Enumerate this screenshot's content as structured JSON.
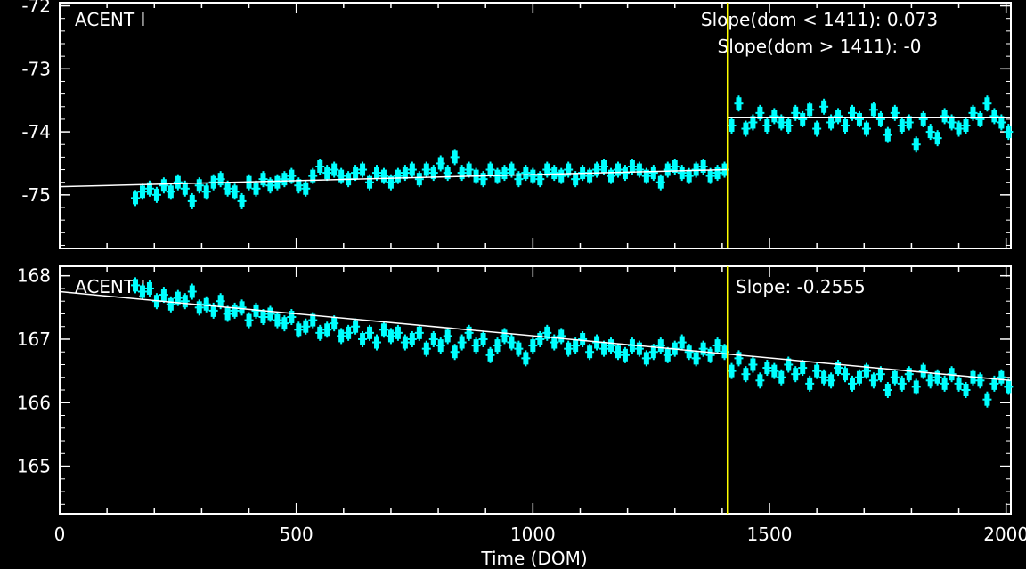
{
  "colors": {
    "background": "#000000",
    "axes": "#ffffff",
    "points": "#00ffff",
    "fit": "#ffffff",
    "divider": "#ffff00"
  },
  "xlabel": "Time (DOM)",
  "chart_data": [
    {
      "type": "scatter",
      "panel_label": "ACENT I",
      "annotations": [
        "Slope(dom < 1411): 0.073",
        "Slope(dom > 1411): -0"
      ],
      "x_ticks": [
        "0",
        "500",
        "1000",
        "1500",
        "2000"
      ],
      "y_ticks": [
        "-72",
        "-73",
        "-74",
        "-75"
      ],
      "xlim": [
        0,
        2010
      ],
      "ylim": [
        -75.85,
        -71.95
      ],
      "divider_x": 1411,
      "fit_segments": [
        {
          "x": [
            0,
            1411
          ],
          "y": [
            -74.87,
            -74.6
          ]
        },
        {
          "x": [
            1411,
            2010
          ],
          "y": [
            -73.77,
            -73.77
          ]
        }
      ],
      "series": [
        {
          "x": [
            160,
            175,
            190,
            205,
            220,
            235,
            250,
            265,
            280,
            295,
            310,
            325,
            340,
            355,
            370,
            385,
            400,
            415,
            430,
            445,
            460,
            475,
            490,
            505,
            520,
            535,
            550,
            565,
            580,
            595,
            610,
            625,
            640,
            655,
            670,
            685,
            700,
            715,
            730,
            745,
            760,
            775,
            790,
            805,
            820,
            835,
            850,
            865,
            880,
            895,
            910,
            925,
            940,
            955,
            970,
            985,
            1000,
            1015,
            1030,
            1045,
            1060,
            1075,
            1090,
            1105,
            1120,
            1135,
            1150,
            1165,
            1180,
            1195,
            1210,
            1225,
            1240,
            1255,
            1270,
            1285,
            1300,
            1315,
            1330,
            1345,
            1360,
            1375,
            1390,
            1405,
            1420,
            1435,
            1450,
            1465,
            1480,
            1495,
            1510,
            1525,
            1540,
            1555,
            1570,
            1585,
            1600,
            1615,
            1630,
            1645,
            1660,
            1675,
            1690,
            1705,
            1720,
            1735,
            1750,
            1765,
            1780,
            1795,
            1810,
            1825,
            1840,
            1855,
            1870,
            1885,
            1900,
            1915,
            1930,
            1945,
            1960,
            1975,
            1990,
            2005
          ],
          "y": [
            -75.05,
            -74.95,
            -74.9,
            -75.0,
            -74.85,
            -74.95,
            -74.8,
            -74.9,
            -75.1,
            -74.85,
            -74.95,
            -74.8,
            -74.75,
            -74.9,
            -74.95,
            -75.1,
            -74.8,
            -74.9,
            -74.75,
            -74.85,
            -74.8,
            -74.75,
            -74.7,
            -74.85,
            -74.9,
            -74.7,
            -74.55,
            -74.65,
            -74.6,
            -74.7,
            -74.75,
            -74.65,
            -74.6,
            -74.8,
            -74.65,
            -74.7,
            -74.8,
            -74.7,
            -74.65,
            -74.6,
            -74.75,
            -74.6,
            -74.65,
            -74.5,
            -74.65,
            -74.4,
            -74.65,
            -74.6,
            -74.7,
            -74.75,
            -74.6,
            -74.7,
            -74.65,
            -74.6,
            -74.75,
            -74.65,
            -74.7,
            -74.75,
            -74.6,
            -74.65,
            -74.7,
            -74.6,
            -74.75,
            -74.65,
            -74.7,
            -74.6,
            -74.55,
            -74.7,
            -74.6,
            -74.65,
            -74.55,
            -74.6,
            -74.7,
            -74.65,
            -74.8,
            -74.6,
            -74.55,
            -74.65,
            -74.7,
            -74.6,
            -74.55,
            -74.7,
            -74.65,
            -74.6,
            -73.9,
            -73.55,
            -73.95,
            -73.85,
            -73.7,
            -73.9,
            -73.75,
            -73.85,
            -73.9,
            -73.7,
            -73.8,
            -73.65,
            -73.95,
            -73.6,
            -73.85,
            -73.75,
            -73.9,
            -73.7,
            -73.8,
            -73.95,
            -73.65,
            -73.8,
            -74.05,
            -73.7,
            -73.9,
            -73.85,
            -74.2,
            -73.8,
            -74.0,
            -74.1,
            -73.75,
            -73.85,
            -73.95,
            -73.9,
            -73.7,
            -73.8,
            -73.55,
            -73.75,
            -73.85,
            -74.0
          ]
        }
      ]
    },
    {
      "type": "scatter",
      "panel_label": "ACENT J",
      "annotations": [
        "Slope: -0.2555"
      ],
      "x_ticks": [
        "0",
        "500",
        "1000",
        "1500",
        "2000"
      ],
      "y_ticks": [
        "168",
        "167",
        "166",
        "165"
      ],
      "xlim": [
        0,
        2010
      ],
      "ylim": [
        164.25,
        168.15
      ],
      "divider_x": 1411,
      "fit_segments": [
        {
          "x": [
            0,
            2010
          ],
          "y": [
            167.75,
            166.35
          ]
        }
      ],
      "series": [
        {
          "x": [
            160,
            175,
            190,
            205,
            220,
            235,
            250,
            265,
            280,
            295,
            310,
            325,
            340,
            355,
            370,
            385,
            400,
            415,
            430,
            445,
            460,
            475,
            490,
            505,
            520,
            535,
            550,
            565,
            580,
            595,
            610,
            625,
            640,
            655,
            670,
            685,
            700,
            715,
            730,
            745,
            760,
            775,
            790,
            805,
            820,
            835,
            850,
            865,
            880,
            895,
            910,
            925,
            940,
            955,
            970,
            985,
            1000,
            1015,
            1030,
            1045,
            1060,
            1075,
            1090,
            1105,
            1120,
            1135,
            1150,
            1165,
            1180,
            1195,
            1210,
            1225,
            1240,
            1255,
            1270,
            1285,
            1300,
            1315,
            1330,
            1345,
            1360,
            1375,
            1390,
            1405,
            1420,
            1435,
            1450,
            1465,
            1480,
            1495,
            1510,
            1525,
            1540,
            1555,
            1570,
            1585,
            1600,
            1615,
            1630,
            1645,
            1660,
            1675,
            1690,
            1705,
            1720,
            1735,
            1750,
            1765,
            1780,
            1795,
            1810,
            1825,
            1840,
            1855,
            1870,
            1885,
            1900,
            1915,
            1930,
            1945,
            1960,
            1975,
            1990,
            2005
          ],
          "y": [
            167.85,
            167.75,
            167.8,
            167.6,
            167.7,
            167.55,
            167.65,
            167.6,
            167.75,
            167.5,
            167.55,
            167.45,
            167.6,
            167.4,
            167.45,
            167.5,
            167.3,
            167.45,
            167.35,
            167.4,
            167.3,
            167.25,
            167.35,
            167.15,
            167.2,
            167.3,
            167.1,
            167.15,
            167.25,
            167.05,
            167.1,
            167.2,
            167.0,
            167.1,
            166.95,
            167.15,
            167.05,
            167.1,
            166.95,
            167.0,
            167.1,
            166.85,
            167.0,
            166.9,
            167.05,
            166.8,
            166.95,
            167.1,
            166.9,
            167.0,
            166.75,
            166.9,
            167.05,
            166.95,
            166.85,
            166.7,
            166.9,
            167.0,
            167.1,
            166.95,
            167.05,
            166.85,
            166.9,
            167.0,
            166.8,
            166.95,
            166.85,
            166.9,
            166.8,
            166.75,
            166.9,
            166.85,
            166.7,
            166.8,
            166.9,
            166.75,
            166.85,
            166.95,
            166.8,
            166.7,
            166.85,
            166.75,
            166.9,
            166.8,
            166.5,
            166.7,
            166.45,
            166.6,
            166.35,
            166.55,
            166.5,
            166.4,
            166.6,
            166.45,
            166.55,
            166.3,
            166.5,
            166.4,
            166.35,
            166.55,
            166.45,
            166.3,
            166.4,
            166.5,
            166.35,
            166.45,
            166.2,
            166.4,
            166.3,
            166.45,
            166.25,
            166.5,
            166.35,
            166.4,
            166.3,
            166.45,
            166.3,
            166.2,
            166.4,
            166.35,
            166.05,
            166.3,
            166.4,
            166.25
          ]
        }
      ]
    }
  ]
}
